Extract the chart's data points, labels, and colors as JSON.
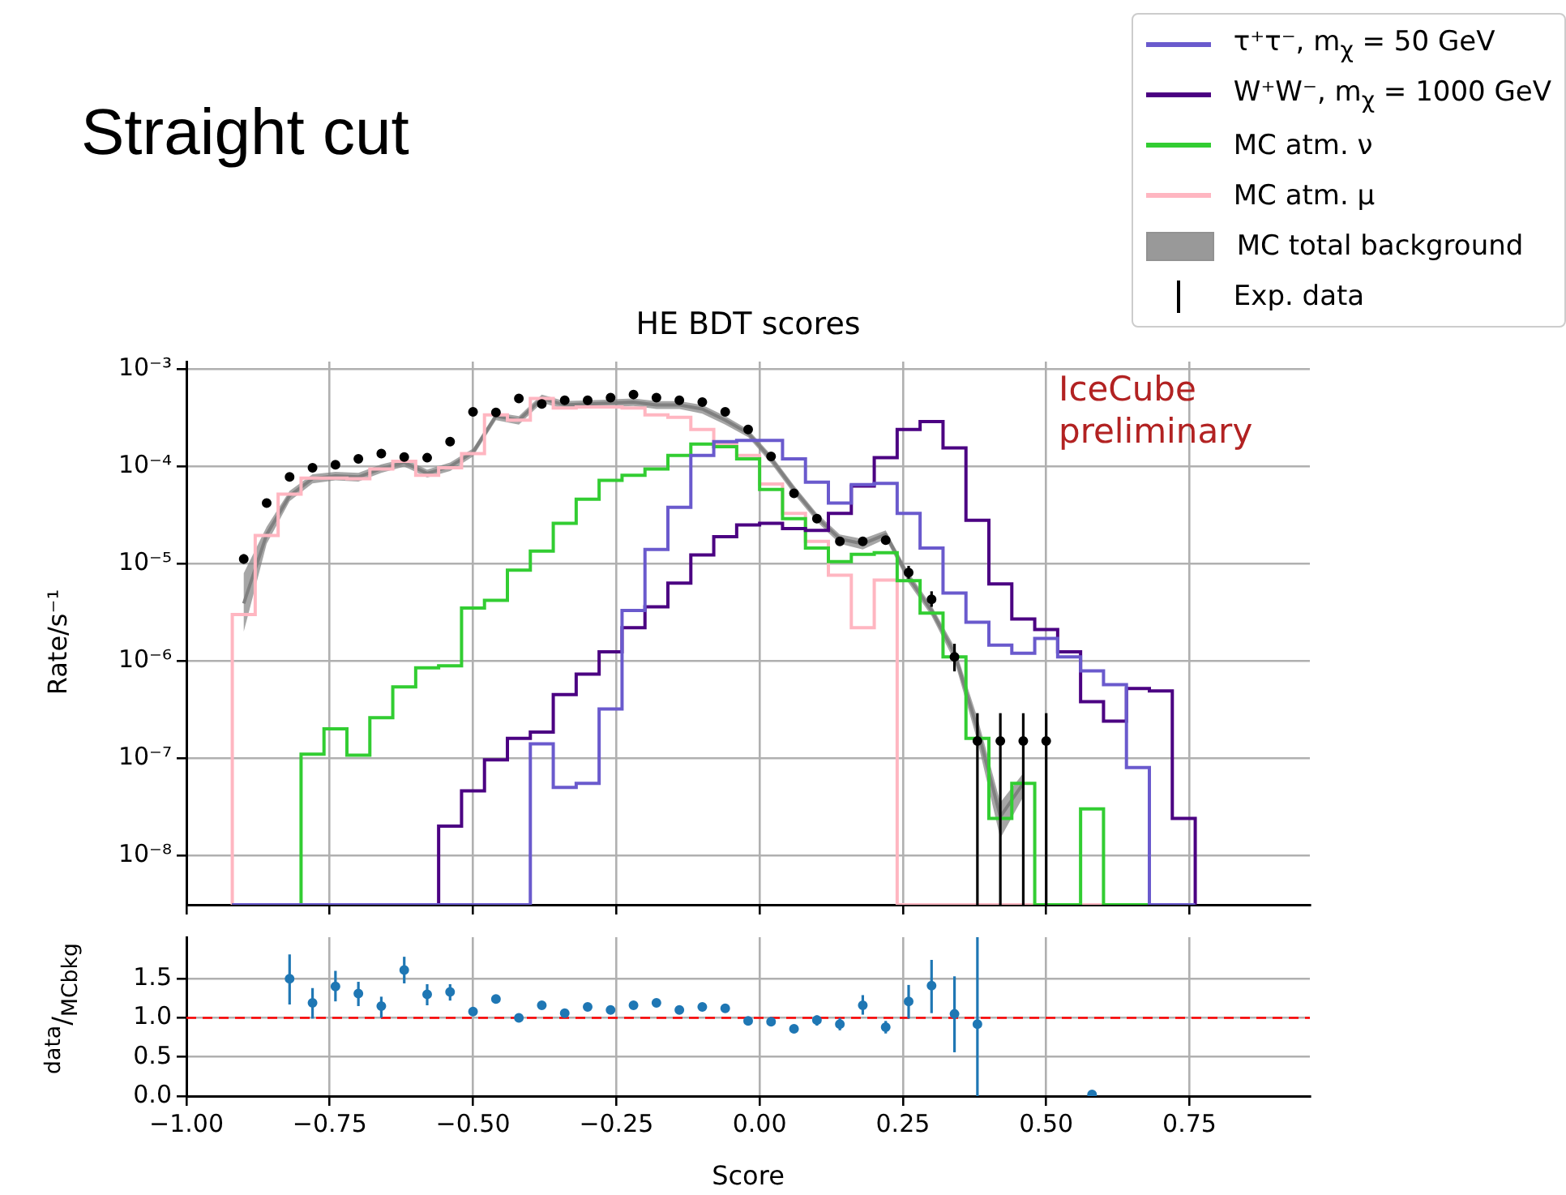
{
  "chart_data": [
    {
      "type": "histogram",
      "title": "Straight cut",
      "subtitle": "HE BDT scores",
      "ylabel": "Rate/s⁻¹",
      "annotations": [
        "IceCube preliminary"
      ],
      "log": "y",
      "grid": true,
      "legend": "top right",
      "tick_labels": "y",
      "xlim": [
        -1,
        0.96
      ],
      "xticks": [
        -1,
        -0.75,
        -0.5,
        -0.25,
        0,
        0.25,
        0.5,
        0.75
      ],
      "ylim": [
        3.1e-09,
        0.0012
      ],
      "yticks": [
        {
          "value": 1e-08,
          "label": "10⁻⁸"
        },
        {
          "value": 1e-07,
          "label": "10⁻⁷"
        },
        {
          "value": 1e-06,
          "label": "10⁻⁶"
        },
        {
          "value": 1e-05,
          "label": "10⁻⁵"
        },
        {
          "value": 0.0001,
          "label": "10⁻⁴"
        },
        {
          "value": 0.001,
          "label": "10⁻³"
        }
      ],
      "bins": [
        -0.92,
        -0.88,
        -0.84,
        -0.8,
        -0.76,
        -0.72,
        -0.68,
        -0.64,
        -0.6,
        -0.56,
        -0.52,
        -0.48,
        -0.44,
        -0.4,
        -0.36,
        -0.32,
        -0.28,
        -0.24,
        -0.2,
        -0.16,
        -0.12,
        -0.08,
        -0.04,
        0,
        0.04,
        0.08,
        0.12,
        0.16,
        0.2,
        0.24,
        0.28,
        0.32,
        0.36,
        0.4,
        0.44,
        0.48,
        0.52,
        0.56,
        0.6,
        0.64,
        0.68,
        0.72,
        0.76
      ],
      "series": [
        {
          "name": "τ⁺τ⁻, m$_{χ}$ = 50 GeV",
          "color": "#6a5acd",
          "values": [
            null,
            null,
            null,
            null,
            null,
            null,
            null,
            null,
            null,
            null,
            null,
            null,
            null,
            1.4e-07,
            5e-08,
            5.5e-08,
            3.2e-07,
            3.3e-06,
            1.4e-05,
            3.8e-05,
            0.00013,
            0.00018,
            0.000185,
            0.000185,
            0.00012,
            6.9e-05,
            4.2e-05,
            6.5e-05,
            6.7e-05,
            3.3e-05,
            1.45e-05,
            5e-06,
            2.5e-06,
            1.45e-06,
            1.2e-06,
            1.7e-06,
            1.1e-06,
            7.9e-07,
            5.7e-07,
            8e-08,
            null,
            null
          ]
        },
        {
          "name": "W⁺W⁻, m$_{χ}$ = 1000 GeV",
          "color": "#4b0082",
          "values": [
            null,
            null,
            null,
            null,
            null,
            null,
            null,
            null,
            null,
            2e-08,
            4.6e-08,
            9.6e-08,
            1.6e-07,
            1.85e-07,
            4.5e-07,
            7.3e-07,
            1.24e-06,
            2.2e-06,
            3.6e-06,
            6.3e-06,
            1.23e-05,
            1.9e-05,
            2.5e-05,
            2.6e-05,
            2.3e-05,
            2.2e-05,
            3.3e-05,
            6.3e-05,
            0.000123,
            0.00024,
            0.00029,
            0.000155,
            2.8e-05,
            6.2e-06,
            2.7e-06,
            2.1e-06,
            1.24e-06,
            3.8e-07,
            2.4e-07,
            5.2e-07,
            4.9e-07,
            2.4e-08
          ]
        },
        {
          "name": "MC atm. ν",
          "color": "#32cd32",
          "values": [
            null,
            null,
            null,
            1.1e-07,
            2e-07,
            1.07e-07,
            2.6e-07,
            5.4e-07,
            8.5e-07,
            8.9e-07,
            3.5e-06,
            4.2e-06,
            8.6e-06,
            1.35e-05,
            2.6e-05,
            4.6e-05,
            7.2e-05,
            8.1e-05,
            9.4e-05,
            0.00013,
            0.00017,
            0.00016,
            0.00012,
            5.8e-05,
            2.9e-05,
            1.45e-05,
            1.05e-05,
            1.25e-05,
            1.3e-05,
            6.7e-06,
            3.1e-06,
            1.1e-06,
            1.6e-07,
            2.4e-08,
            5.5e-08,
            null,
            null,
            3e-08,
            null,
            null,
            null,
            null
          ]
        },
        {
          "name": "MC atm. μ",
          "color": "#ffb6c1",
          "values": [
            3e-06,
            1.95e-05,
            5.2e-05,
            7.6e-05,
            7.6e-05,
            7.5e-05,
            9.4e-05,
            0.000113,
            8.1e-05,
            9.7e-05,
            0.000136,
            0.00034,
            0.0003,
            0.0005,
            0.0004,
            0.00041,
            0.00041,
            0.0004,
            0.00034,
            0.00032,
            0.00024,
            0.00017,
            0.00013,
            6.6e-05,
            3.3e-05,
            1.7e-05,
            7.6e-06,
            2.2e-06,
            6.8e-06,
            null,
            null,
            null,
            null,
            null,
            null,
            null,
            null,
            null,
            null,
            null,
            null,
            null
          ]
        },
        {
          "name": "MC total background",
          "type": "line",
          "color": "#808080",
          "x": [
            -0.9,
            -0.86,
            -0.82,
            -0.78,
            -0.74,
            -0.7,
            -0.66,
            -0.62,
            -0.58,
            -0.54,
            -0.5,
            -0.46,
            -0.42,
            -0.38,
            -0.34,
            -0.3,
            -0.26,
            -0.22,
            -0.18,
            -0.14,
            -0.1,
            -0.06,
            -0.02,
            0.02,
            0.06,
            0.1,
            0.14,
            0.18,
            0.22,
            0.26,
            0.3,
            0.34,
            0.38,
            0.42,
            0.46
          ],
          "values": [
            3.9e-06,
            2e-05,
            5e-05,
            7.5e-05,
            8e-05,
            7.8e-05,
            9.5e-05,
            0.00011,
            8.5e-05,
            0.0001,
            0.00014,
            0.00033,
            0.0003,
            0.0005,
            0.00043,
            0.00044,
            0.00045,
            0.00046,
            0.00043,
            0.00043,
            0.00039,
            0.0003,
            0.00022,
            0.00012,
            5.8e-05,
            3e-05,
            1.8e-05,
            1.6e-05,
            2e-05,
            7.2e-06,
            3.3e-06,
            1.2e-06,
            2e-07,
            2.5e-08,
            5.5e-08
          ],
          "lower": [
            2e-06,
            1.6e-05,
            4.4e-05,
            6.7e-05,
            7.2e-05,
            7e-05,
            8.6e-05,
            0.0001,
            7.7e-05,
            9e-05,
            0.000127,
            0.0003,
            0.00027,
            0.00045,
            0.00039,
            0.0004,
            0.00041,
            0.00042,
            0.00039,
            0.00039,
            0.00035,
            0.00027,
            0.0002,
            0.000108,
            5.2e-05,
            2.7e-05,
            1.6e-05,
            1.4e-05,
            1.8e-05,
            6.3e-06,
            2.9e-06,
            1e-06,
            1.5e-07,
            1.5e-08,
            4e-08
          ],
          "upper": [
            8e-06,
            2.4e-05,
            5.6e-05,
            8.3e-05,
            8.8e-05,
            8.6e-05,
            0.000105,
            0.00012,
            9.3e-05,
            0.00011,
            0.000153,
            0.00036,
            0.00033,
            0.00055,
            0.00047,
            0.00048,
            0.00049,
            0.0005,
            0.00047,
            0.00047,
            0.00043,
            0.00033,
            0.00024,
            0.000132,
            6.4e-05,
            3.3e-05,
            2e-05,
            1.8e-05,
            2.2e-05,
            8.1e-06,
            3.7e-06,
            1.4e-06,
            2.6e-07,
            3.5e-08,
            7e-08
          ]
        },
        {
          "name": "Exp. data",
          "type": "scatter",
          "color": "#000000",
          "marker": "circle",
          "x": [
            -0.9,
            -0.86,
            -0.82,
            -0.78,
            -0.74,
            -0.7,
            -0.66,
            -0.62,
            -0.58,
            -0.54,
            -0.5,
            -0.46,
            -0.42,
            -0.38,
            -0.34,
            -0.3,
            -0.26,
            -0.22,
            -0.18,
            -0.14,
            -0.1,
            -0.06,
            -0.02,
            0.02,
            0.06,
            0.1,
            0.14,
            0.18,
            0.22,
            0.26,
            0.3,
            0.34,
            0.38,
            0.42,
            0.46,
            0.5
          ],
          "values": [
            1.12e-05,
            4.2e-05,
            7.8e-05,
            9.7e-05,
            0.000104,
            0.00012,
            0.000136,
            0.000125,
            0.000123,
            0.00018,
            0.000365,
            0.00036,
            0.0005,
            0.00044,
            0.00048,
            0.00048,
            0.00051,
            0.00055,
            0.00051,
            0.00048,
            0.00046,
            0.000365,
            0.00024,
            0.000127,
            5.3e-05,
            2.9e-05,
            1.7e-05,
            1.7e-05,
            1.75e-05,
            8.1e-06,
            4.3e-06,
            1.1e-06,
            1.5e-07,
            1.5e-07,
            1.5e-07,
            1.5e-07
          ],
          "errors": [
            [
              1e-05,
              1.25e-05
            ],
            null,
            null,
            null,
            null,
            null,
            null,
            null,
            null,
            null,
            null,
            null,
            null,
            null,
            null,
            null,
            null,
            null,
            null,
            null,
            null,
            null,
            null,
            null,
            null,
            null,
            null,
            null,
            null,
            [
              7e-06,
              9.5e-06
            ],
            [
              3.6e-06,
              5.2e-06
            ],
            [
              7.8e-07,
              1.5e-06
            ],
            [
              3.1e-09,
              2.9e-07
            ],
            [
              3.1e-09,
              2.9e-07
            ],
            [
              3.1e-09,
              2.9e-07
            ],
            [
              3.1e-09,
              2.9e-07
            ]
          ]
        }
      ]
    },
    {
      "type": "scatter",
      "xlabel": "Score",
      "ylabel": "$^{data}$/$_{MCbkg}$",
      "grid": true,
      "marker": "circle",
      "xlim": [
        -1,
        0.96
      ],
      "xticks": [
        {
          "value": -1,
          "label": "−1.00"
        },
        {
          "value": -0.75,
          "label": "−0.75"
        },
        {
          "value": -0.5,
          "label": "−0.50"
        },
        {
          "value": -0.25,
          "label": "−0.25"
        },
        {
          "value": 0,
          "label": "0.00"
        },
        {
          "value": 0.25,
          "label": "0.25"
        },
        {
          "value": 0.5,
          "label": "0.50"
        },
        {
          "value": 0.75,
          "label": "0.75"
        }
      ],
      "ylim": [
        0,
        2.03
      ],
      "yticks": [
        {
          "value": 0,
          "label": "0.0"
        },
        {
          "value": 0.5,
          "label": "0.5"
        },
        {
          "value": 1,
          "label": "1.0"
        },
        {
          "value": 1.5,
          "label": "1.5"
        }
      ],
      "ref_lines": [
        {
          "axis": "y",
          "value": 1,
          "color": "#ff0000",
          "line_style": "dashed"
        }
      ],
      "series": [
        {
          "color": "#1f77b4",
          "x": [
            -0.82,
            -0.78,
            -0.74,
            -0.7,
            -0.66,
            -0.62,
            -0.58,
            -0.54,
            -0.5,
            -0.46,
            -0.42,
            -0.38,
            -0.34,
            -0.3,
            -0.26,
            -0.22,
            -0.18,
            -0.14,
            -0.1,
            -0.06,
            -0.02,
            0.02,
            0.06,
            0.1,
            0.14,
            0.18,
            0.22,
            0.26,
            0.3,
            0.34,
            0.38,
            0.58
          ],
          "values": [
            1.5,
            1.19,
            1.4,
            1.31,
            1.15,
            1.61,
            1.3,
            1.33,
            1.08,
            1.24,
            1.0,
            1.16,
            1.06,
            1.14,
            1.1,
            1.16,
            1.19,
            1.1,
            1.14,
            1.12,
            0.96,
            0.95,
            0.86,
            0.97,
            0.92,
            1.16,
            0.88,
            1.21,
            1.41,
            1.05,
            0.92,
            0.02
          ],
          "errors": [
            [
              1.17,
              1.81
            ],
            [
              0.99,
              1.38
            ],
            [
              1.21,
              1.6
            ],
            [
              1.15,
              1.46
            ],
            [
              1.0,
              1.27
            ],
            [
              1.44,
              1.78
            ],
            [
              1.16,
              1.43
            ],
            [
              1.22,
              1.43
            ],
            null,
            null,
            null,
            null,
            null,
            null,
            null,
            null,
            null,
            null,
            null,
            null,
            null,
            null,
            [
              0.82,
              0.91
            ],
            [
              0.9,
              1.03
            ],
            [
              0.84,
              1.0
            ],
            [
              1.04,
              1.29
            ],
            [
              0.8,
              0.96
            ],
            [
              0.99,
              1.42
            ],
            [
              1.06,
              1.74
            ],
            [
              0.56,
              1.53
            ],
            [
              0,
              2.03
            ],
            null
          ]
        }
      ]
    }
  ]
}
